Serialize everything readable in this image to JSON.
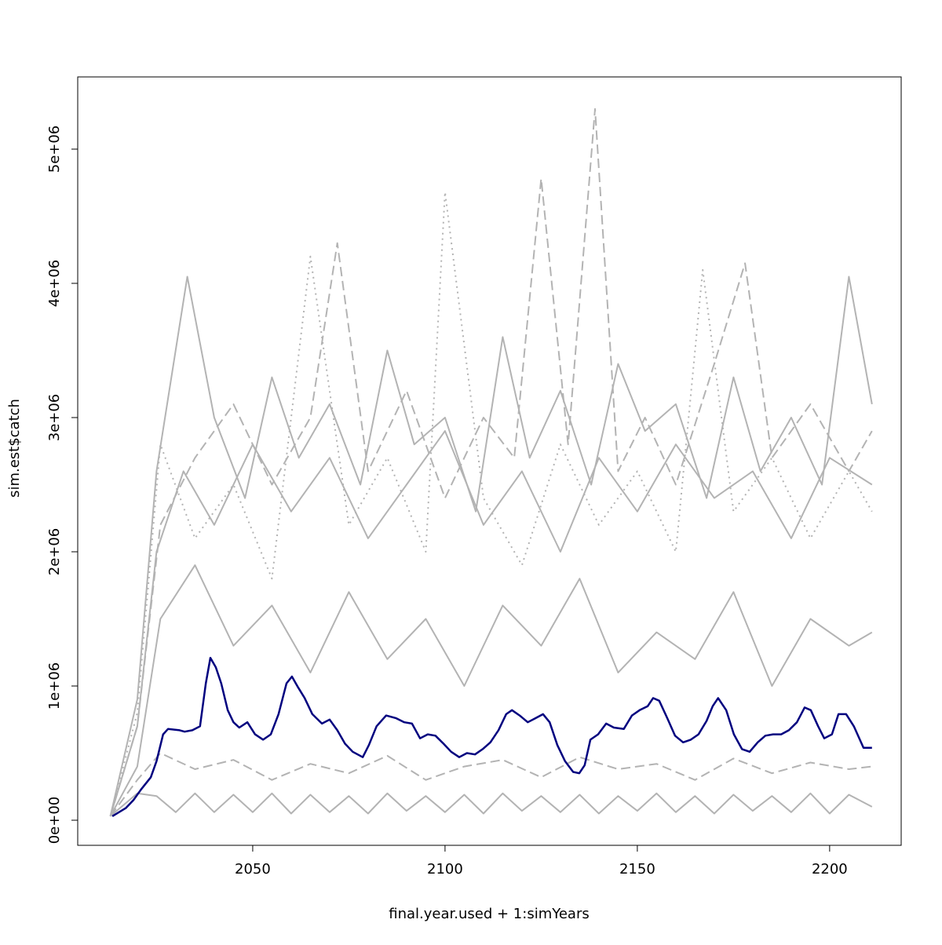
{
  "chart_data": {
    "type": "line",
    "x_label": "final.year.used + 1:simYears",
    "y_label": "sim.est$catch",
    "xlim": [
      2004.5,
      2218.6
    ],
    "ylim": [
      -187000,
      5538000
    ],
    "xticks": [
      2050,
      2100,
      2150,
      2200
    ],
    "yticks": [
      {
        "value": 0,
        "label": "0e+00"
      },
      {
        "value": 1000000,
        "label": "1e+06"
      },
      {
        "value": 2000000,
        "label": "2e+06"
      },
      {
        "value": 3000000,
        "label": "3e+06"
      },
      {
        "value": 4000000,
        "label": "4e+06"
      },
      {
        "value": 5000000,
        "label": "5e+06"
      }
    ],
    "series": [
      {
        "color": "#b3b3b3",
        "dash": "solid",
        "x": [
          2013,
          2020,
          2025,
          2030,
          2035,
          2040,
          2045,
          2050,
          2055,
          2060,
          2065,
          2070,
          2075,
          2080,
          2085,
          2090,
          2095,
          2100,
          2105,
          2110,
          2115,
          2120,
          2125,
          2130,
          2135,
          2140,
          2145,
          2150,
          2155,
          2160,
          2165,
          2170,
          2175,
          2180,
          2185,
          2190,
          2195,
          2200,
          2205,
          2211
        ],
        "values": [
          30000,
          200000,
          180000,
          60000,
          200000,
          60000,
          190000,
          60000,
          200000,
          50000,
          190000,
          60000,
          180000,
          50000,
          200000,
          70000,
          180000,
          60000,
          190000,
          50000,
          200000,
          70000,
          180000,
          60000,
          190000,
          50000,
          180000,
          70000,
          200000,
          60000,
          180000,
          50000,
          190000,
          70000,
          180000,
          60000,
          200000,
          50000,
          190000,
          100000
        ]
      },
      {
        "color": "#b3b3b3",
        "dash": "solid",
        "x": [
          2013,
          2020,
          2025,
          2033,
          2040,
          2048,
          2055,
          2062,
          2070,
          2078,
          2085,
          2092,
          2100,
          2108,
          2115,
          2122,
          2130,
          2138,
          2145,
          2152,
          2160,
          2168,
          2175,
          2182,
          2190,
          2198,
          2205,
          2211
        ],
        "values": [
          30000,
          900000,
          2600000,
          4050000,
          3000000,
          2400000,
          3300000,
          2700000,
          3100000,
          2500000,
          3500000,
          2800000,
          3000000,
          2300000,
          3600000,
          2700000,
          3200000,
          2500000,
          3400000,
          2900000,
          3100000,
          2400000,
          3300000,
          2600000,
          3000000,
          2500000,
          4050000,
          3100000
        ]
      },
      {
        "color": "#b3b3b3",
        "dash": "dashed",
        "x": [
          2013,
          2020,
          2026,
          2035,
          2045,
          2055,
          2065,
          2072,
          2080,
          2090,
          2100,
          2110,
          2118,
          2125,
          2132,
          2139,
          2145,
          2152,
          2160,
          2170,
          2178,
          2185,
          2195,
          2205,
          2211
        ],
        "values": [
          30000,
          700000,
          2200000,
          2700000,
          3100000,
          2500000,
          3000000,
          4300000,
          2600000,
          3200000,
          2400000,
          3000000,
          2700000,
          4780000,
          2800000,
          5300000,
          2600000,
          3000000,
          2500000,
          3400000,
          4150000,
          2700000,
          3100000,
          2600000,
          2900000
        ]
      },
      {
        "color": "#b3b3b3",
        "dash": "dotted",
        "x": [
          2013,
          2020,
          2026,
          2035,
          2045,
          2055,
          2065,
          2075,
          2085,
          2095,
          2100,
          2110,
          2120,
          2130,
          2140,
          2150,
          2160,
          2167,
          2175,
          2185,
          2195,
          2205,
          2211
        ],
        "values": [
          30000,
          800000,
          2800000,
          2100000,
          2500000,
          1800000,
          4200000,
          2200000,
          2700000,
          2000000,
          4680000,
          2400000,
          1900000,
          2800000,
          2200000,
          2600000,
          2000000,
          4100000,
          2300000,
          2700000,
          2100000,
          2600000,
          2300000
        ]
      },
      {
        "color": "#b3b3b3",
        "dash": "solid",
        "x": [
          2013,
          2020,
          2026,
          2035,
          2045,
          2055,
          2065,
          2075,
          2085,
          2095,
          2105,
          2115,
          2125,
          2135,
          2145,
          2155,
          2165,
          2175,
          2185,
          2195,
          2205,
          2211
        ],
        "values": [
          30000,
          400000,
          1500000,
          1900000,
          1300000,
          1600000,
          1100000,
          1700000,
          1200000,
          1500000,
          1000000,
          1600000,
          1300000,
          1800000,
          1100000,
          1400000,
          1200000,
          1700000,
          1000000,
          1500000,
          1300000,
          1400000
        ]
      },
      {
        "color": "#b3b3b3",
        "dash": "dashed",
        "x": [
          2013,
          2020,
          2026,
          2035,
          2045,
          2055,
          2065,
          2075,
          2085,
          2095,
          2105,
          2115,
          2125,
          2135,
          2145,
          2155,
          2165,
          2175,
          2185,
          2195,
          2205,
          2211
        ],
        "values": [
          30000,
          300000,
          500000,
          380000,
          450000,
          300000,
          420000,
          350000,
          480000,
          300000,
          400000,
          450000,
          320000,
          470000,
          380000,
          420000,
          300000,
          460000,
          350000,
          430000,
          380000,
          400000
        ]
      },
      {
        "color": "#b3b3b3",
        "dash": "solid",
        "x": [
          2013,
          2020,
          2025,
          2032,
          2040,
          2050,
          2060,
          2070,
          2080,
          2090,
          2100,
          2110,
          2120,
          2130,
          2140,
          2150,
          2160,
          2170,
          2180,
          2190,
          2200,
          2211
        ],
        "values": [
          30000,
          700000,
          2000000,
          2600000,
          2200000,
          2800000,
          2300000,
          2700000,
          2100000,
          2500000,
          2900000,
          2200000,
          2600000,
          2000000,
          2700000,
          2300000,
          2800000,
          2400000,
          2600000,
          2100000,
          2700000,
          2500000
        ]
      },
      {
        "color": "#00007f",
        "dash": "solid",
        "width": 2.5,
        "x": [
          2013.5,
          2017,
          2019,
          2021,
          2023.5,
          2025,
          2026.7,
          2028,
          2031,
          2032.3,
          2034.3,
          2036.3,
          2037.8,
          2039,
          2040.4,
          2041.8,
          2043.5,
          2045,
          2046.5,
          2048.6,
          2050.6,
          2052.7,
          2054.7,
          2056.7,
          2058.8,
          2060.2,
          2061.8,
          2063.5,
          2065.5,
          2068,
          2070,
          2072,
          2074,
          2076,
          2078.6,
          2080.2,
          2082.2,
          2084.7,
          2087.3,
          2089.4,
          2091.4,
          2093.5,
          2095.5,
          2097.5,
          2099.6,
          2101.6,
          2103.7,
          2105.7,
          2107.8,
          2109.8,
          2111.8,
          2113.9,
          2115.9,
          2117.4,
          2119.4,
          2121.5,
          2123.5,
          2125.5,
          2127.2,
          2129.2,
          2131.2,
          2133.3,
          2134.9,
          2136.3,
          2137.8,
          2139.8,
          2141.9,
          2143.9,
          2146.5,
          2148.6,
          2150.6,
          2152.7,
          2154.1,
          2155.7,
          2157.8,
          2159.8,
          2161.9,
          2163.9,
          2165.9,
          2168,
          2169.6,
          2171,
          2173.1,
          2175.1,
          2177.2,
          2179.2,
          2181.3,
          2183.3,
          2185.3,
          2187.4,
          2189.4,
          2191.5,
          2193.5,
          2195.1,
          2197,
          2198.6,
          2200.6,
          2202.3,
          2204.3,
          2206.3,
          2208.8,
          2211
        ],
        "values": [
          30000,
          90000,
          150000,
          230000,
          320000,
          440000,
          640000,
          680000,
          670000,
          660000,
          670000,
          700000,
          1020000,
          1210000,
          1140000,
          1020000,
          820000,
          730000,
          690000,
          730000,
          640000,
          600000,
          640000,
          790000,
          1020000,
          1070000,
          990000,
          910000,
          790000,
          720000,
          750000,
          670000,
          570000,
          510000,
          470000,
          560000,
          700000,
          780000,
          760000,
          730000,
          720000,
          610000,
          640000,
          630000,
          570000,
          510000,
          470000,
          500000,
          490000,
          530000,
          580000,
          670000,
          790000,
          820000,
          780000,
          730000,
          760000,
          790000,
          730000,
          560000,
          440000,
          360000,
          350000,
          410000,
          600000,
          640000,
          720000,
          690000,
          680000,
          780000,
          820000,
          850000,
          910000,
          890000,
          760000,
          630000,
          580000,
          600000,
          640000,
          740000,
          850000,
          910000,
          820000,
          640000,
          530000,
          510000,
          580000,
          630000,
          640000,
          640000,
          670000,
          730000,
          840000,
          820000,
          700000,
          610000,
          640000,
          790000,
          790000,
          700000,
          540000,
          540000
        ]
      }
    ]
  }
}
